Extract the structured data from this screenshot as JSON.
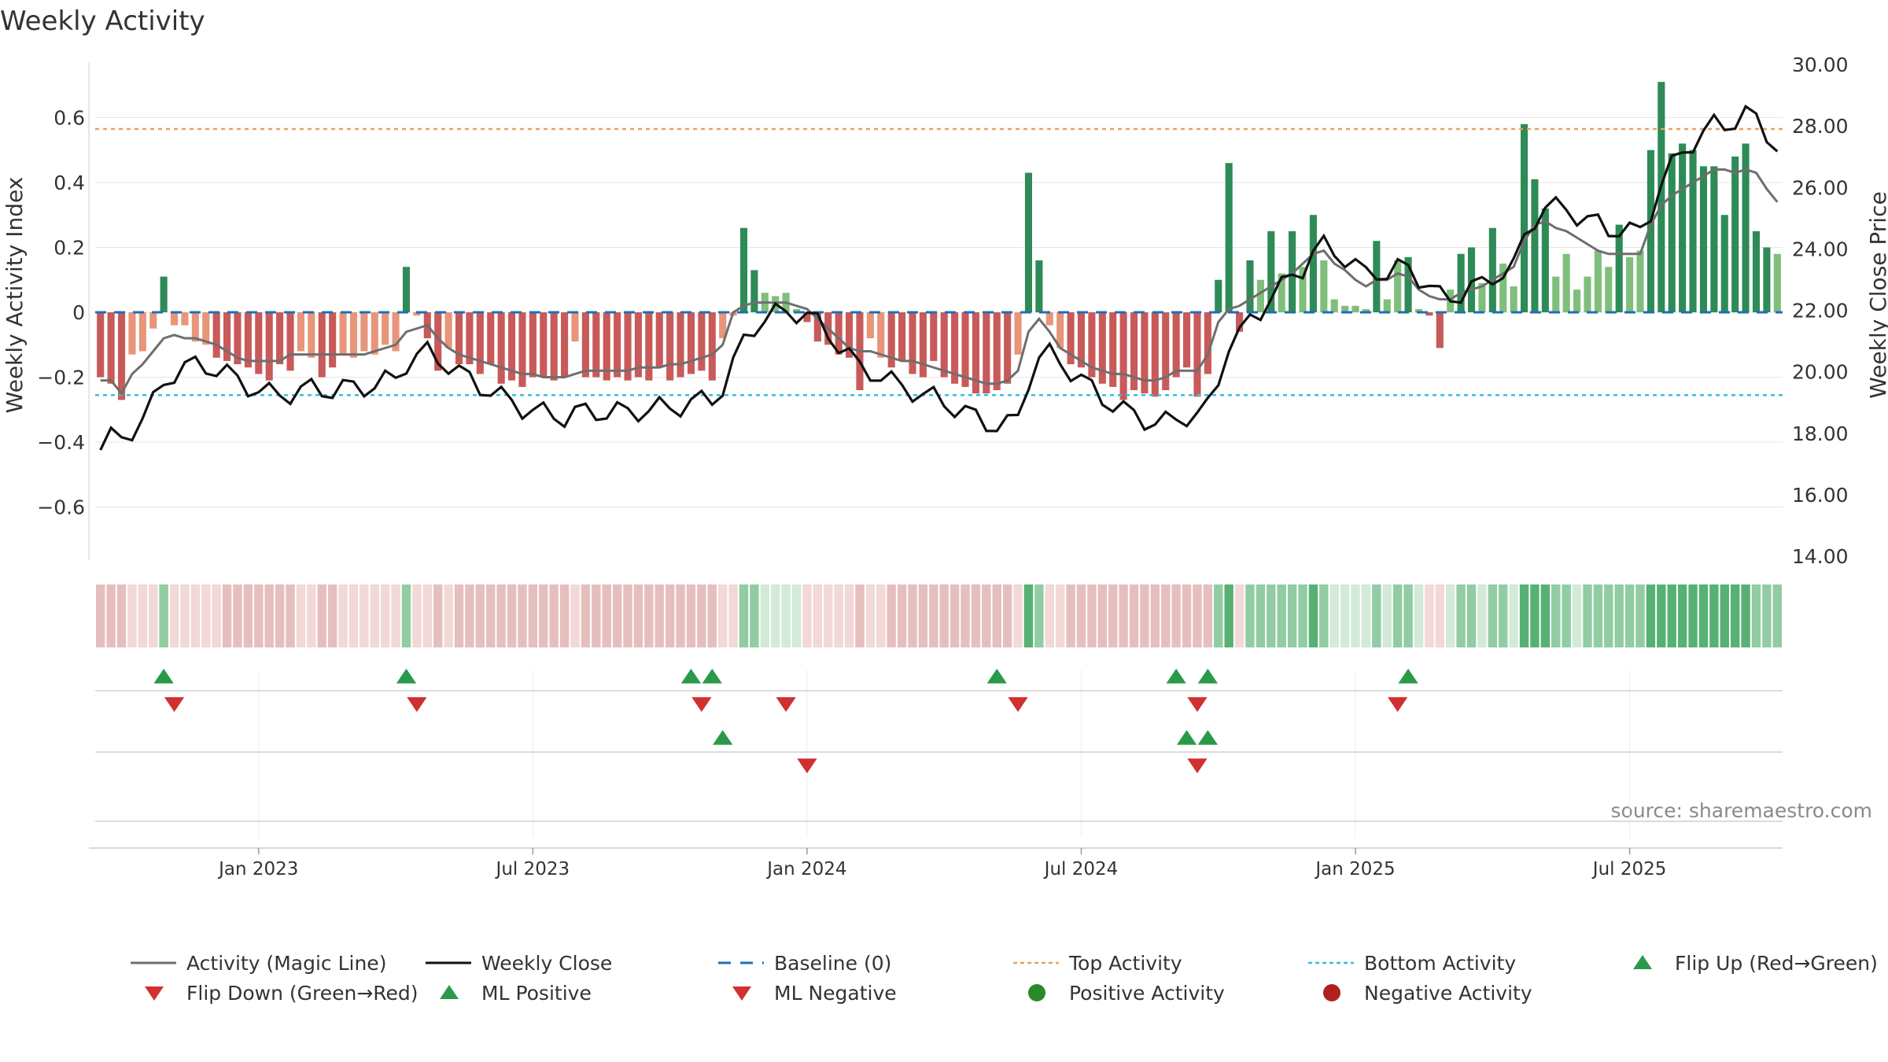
{
  "chart_data": {
    "type": "bar",
    "title": "Weekly Activity",
    "ylabel_left": "Weekly Activity Index",
    "ylabel_right": "Weekly Close Price",
    "source_note": "source: sharemaestro.com",
    "ylim_left": [
      -0.77,
      0.77
    ],
    "ylim_right": [
      14.0,
      30.0
    ],
    "left_ticks": [
      {
        "v": 0.6,
        "label": "0.6"
      },
      {
        "v": 0.4,
        "label": "0.4"
      },
      {
        "v": 0.2,
        "label": "0.2"
      },
      {
        "v": 0,
        "label": "0"
      },
      {
        "v": -0.2,
        "label": "−0.2"
      },
      {
        "v": -0.4,
        "label": "−0.4"
      },
      {
        "v": -0.6,
        "label": "−0.6"
      }
    ],
    "right_ticks": [
      "14.00",
      "16.00",
      "18.00",
      "20.00",
      "22.00",
      "24.00",
      "26.00",
      "28.00",
      "30.00"
    ],
    "x_ticks": [
      {
        "i": 15,
        "label": "Jan 2023"
      },
      {
        "i": 41,
        "label": "Jul 2023"
      },
      {
        "i": 67,
        "label": "Jan 2024"
      },
      {
        "i": 93,
        "label": "Jul 2024"
      },
      {
        "i": 119,
        "label": "Jan 2025"
      },
      {
        "i": 145,
        "label": "Jul 2025"
      }
    ],
    "thresholds": {
      "top": 0.565,
      "bottom": -0.255,
      "baseline": 0
    },
    "activity": [
      -0.2,
      -0.22,
      -0.27,
      -0.13,
      -0.12,
      -0.05,
      0.11,
      -0.04,
      -0.04,
      -0.09,
      -0.1,
      -0.14,
      -0.15,
      -0.16,
      -0.17,
      -0.19,
      -0.21,
      -0.16,
      -0.18,
      -0.12,
      -0.14,
      -0.2,
      -0.17,
      -0.13,
      -0.14,
      -0.12,
      -0.13,
      -0.1,
      -0.12,
      0.14,
      -0.01,
      -0.08,
      -0.18,
      -0.11,
      -0.16,
      -0.16,
      -0.19,
      -0.16,
      -0.22,
      -0.21,
      -0.23,
      -0.2,
      -0.2,
      -0.21,
      -0.2,
      -0.09,
      -0.2,
      -0.2,
      -0.21,
      -0.2,
      -0.21,
      -0.2,
      -0.21,
      -0.17,
      -0.21,
      -0.2,
      -0.19,
      -0.18,
      -0.21,
      -0.08,
      -0.01,
      0.26,
      0.13,
      0.06,
      0.05,
      0.06,
      0.01,
      -0.03,
      -0.09,
      -0.1,
      -0.13,
      -0.14,
      -0.24,
      -0.08,
      -0.14,
      -0.17,
      -0.15,
      -0.19,
      -0.2,
      -0.15,
      -0.2,
      -0.22,
      -0.23,
      -0.25,
      -0.25,
      -0.24,
      -0.22,
      -0.13,
      0.43,
      0.16,
      -0.04,
      -0.11,
      -0.16,
      -0.17,
      -0.2,
      -0.22,
      -0.23,
      -0.27,
      -0.24,
      -0.25,
      -0.26,
      -0.24,
      -0.2,
      -0.17,
      -0.26,
      -0.19,
      0.1,
      0.46,
      -0.06,
      0.16,
      0.1,
      0.25,
      0.12,
      0.25,
      0.14,
      0.3,
      0.16,
      0.04,
      0.02,
      0.02,
      0.01,
      0.22,
      0.04,
      0.16,
      0.17,
      0.01,
      -0.01,
      -0.11,
      0.07,
      0.18,
      0.2,
      0.09,
      0.26,
      0.15,
      0.08,
      0.58,
      0.41,
      0.32,
      0.11,
      0.18,
      0.07,
      0.11,
      0.19,
      0.14,
      0.27,
      0.17,
      0.19,
      0.5,
      0.71,
      0.49,
      0.52,
      0.5,
      0.45,
      0.45,
      0.3,
      0.48,
      0.52,
      0.25,
      0.2,
      0.18
    ],
    "magic_line": [
      -0.21,
      -0.21,
      -0.25,
      -0.19,
      -0.16,
      -0.12,
      -0.08,
      -0.07,
      -0.08,
      -0.08,
      -0.09,
      -0.1,
      -0.12,
      -0.14,
      -0.15,
      -0.15,
      -0.15,
      -0.15,
      -0.13,
      -0.13,
      -0.13,
      -0.13,
      -0.13,
      -0.13,
      -0.13,
      -0.13,
      -0.12,
      -0.11,
      -0.1,
      -0.06,
      -0.05,
      -0.04,
      -0.08,
      -0.11,
      -0.13,
      -0.14,
      -0.15,
      -0.16,
      -0.17,
      -0.18,
      -0.19,
      -0.19,
      -0.2,
      -0.2,
      -0.2,
      -0.19,
      -0.18,
      -0.18,
      -0.18,
      -0.18,
      -0.18,
      -0.17,
      -0.17,
      -0.17,
      -0.16,
      -0.16,
      -0.15,
      -0.14,
      -0.13,
      -0.1,
      0,
      0.02,
      0.03,
      0.03,
      0.03,
      0.03,
      0.02,
      0.01,
      -0.02,
      -0.05,
      -0.08,
      -0.11,
      -0.12,
      -0.12,
      -0.13,
      -0.14,
      -0.15,
      -0.15,
      -0.16,
      -0.17,
      -0.18,
      -0.19,
      -0.2,
      -0.21,
      -0.22,
      -0.22,
      -0.21,
      -0.18,
      -0.06,
      -0.02,
      -0.06,
      -0.11,
      -0.13,
      -0.15,
      -0.17,
      -0.18,
      -0.19,
      -0.19,
      -0.2,
      -0.21,
      -0.21,
      -0.2,
      -0.18,
      -0.18,
      -0.18,
      -0.13,
      -0.03,
      0.01,
      0.02,
      0.04,
      0.06,
      0.08,
      0.1,
      0.12,
      0.15,
      0.18,
      0.19,
      0.15,
      0.13,
      0.1,
      0.08,
      0.1,
      0.1,
      0.12,
      0.11,
      0.07,
      0.05,
      0.04,
      0.04,
      0.06,
      0.07,
      0.08,
      0.1,
      0.12,
      0.14,
      0.22,
      0.27,
      0.28,
      0.26,
      0.25,
      0.23,
      0.21,
      0.19,
      0.18,
      0.18,
      0.18,
      0.18,
      0.27,
      0.33,
      0.36,
      0.38,
      0.4,
      0.42,
      0.44,
      0.44,
      0.43,
      0.44,
      0.43,
      0.38,
      0.34
    ]
  },
  "markers": {
    "flip_up": [
      6,
      29,
      56,
      58,
      85,
      102,
      105,
      124
    ],
    "flip_down": [
      7,
      30,
      57,
      65,
      87,
      104,
      123
    ],
    "ml_positive": [
      59,
      103,
      105
    ],
    "ml_negative": [
      67,
      104
    ]
  },
  "legend": [
    {
      "key": "magic",
      "label": "Activity (Magic Line)"
    },
    {
      "key": "close",
      "label": "Weekly Close"
    },
    {
      "key": "baseline",
      "label": "Baseline (0)"
    },
    {
      "key": "top",
      "label": "Top Activity"
    },
    {
      "key": "bottom",
      "label": "Bottom Activity"
    },
    {
      "key": "flipup",
      "label": "Flip Up (Red→Green)"
    },
    {
      "key": "flipdown",
      "label": "Flip Down (Green→Red)"
    },
    {
      "key": "mlpos",
      "label": "ML Positive"
    },
    {
      "key": "mlneg",
      "label": "ML Negative"
    },
    {
      "key": "posact",
      "label": "Positive Activity"
    },
    {
      "key": "negact",
      "label": "Negative Activity"
    }
  ],
  "colors": {
    "pos_strong": "#2e8b57",
    "pos_light": "#7fbf7b",
    "neg_strong": "#c85a5a",
    "neg_light": "#e8957a",
    "magic": "#6e6e6e",
    "close": "#111111",
    "baseline": "#1f6fb4",
    "top": "#e8a060",
    "bottom": "#35c0d8",
    "marker_up": "#2a9a4a",
    "marker_down": "#d03030",
    "dot_pos": "#2a8a2a",
    "dot_neg": "#b02020"
  }
}
